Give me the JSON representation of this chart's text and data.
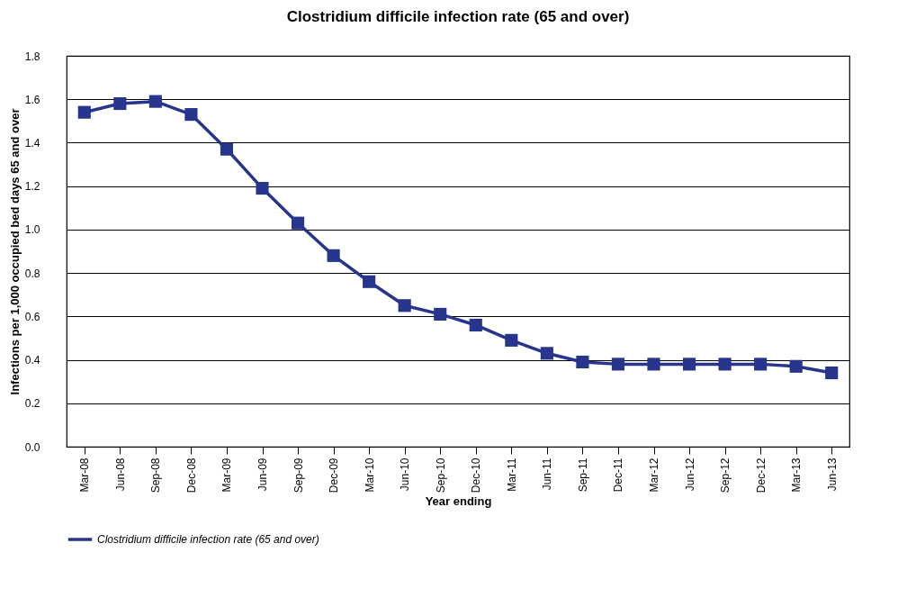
{
  "chart_data": {
    "type": "line",
    "title": "Clostridium difficile infection rate (65 and over)",
    "xlabel": "Year ending",
    "ylabel": "Infections per 1,000 occupied bed days 65 and over",
    "categories": [
      "Mar-08",
      "Jun-08",
      "Sep-08",
      "Dec-08",
      "Mar-09",
      "Jun-09",
      "Sep-09",
      "Dec-09",
      "Mar-10",
      "Jun-10",
      "Sep-10",
      "Dec-10",
      "Mar-11",
      "Jun-11",
      "Sep-11",
      "Dec-11",
      "Mar-12",
      "Jun-12",
      "Sep-12",
      "Dec-12",
      "Mar-13",
      "Jun-13"
    ],
    "series": [
      {
        "name": "Clostridium difficile infection rate (65 and over)",
        "color": "#27358c",
        "values": [
          1.54,
          1.58,
          1.59,
          1.53,
          1.37,
          1.19,
          1.03,
          0.88,
          0.76,
          0.65,
          0.61,
          0.56,
          0.49,
          0.43,
          0.39,
          0.38,
          0.38,
          0.38,
          0.38,
          0.38,
          0.37,
          0.34
        ]
      }
    ],
    "ylim": [
      0,
      1.8
    ],
    "yticks": [
      {
        "value": 0,
        "label": "0.0"
      },
      {
        "value": 0.2,
        "label": "0.2"
      },
      {
        "value": 0.4,
        "label": "0.4"
      },
      {
        "value": 0.6,
        "label": "0.6"
      },
      {
        "value": 0.8,
        "label": "0.8"
      },
      {
        "value": 1,
        "label": "1.0"
      },
      {
        "value": 1.2,
        "label": "1.2"
      },
      {
        "value": 1.4,
        "label": "1.4"
      },
      {
        "value": 1.6,
        "label": "1.6"
      },
      {
        "value": 1.8,
        "label": "1.8"
      }
    ],
    "grid": "y",
    "legend": "bottom",
    "marker": "square",
    "line_style": "solid"
  }
}
